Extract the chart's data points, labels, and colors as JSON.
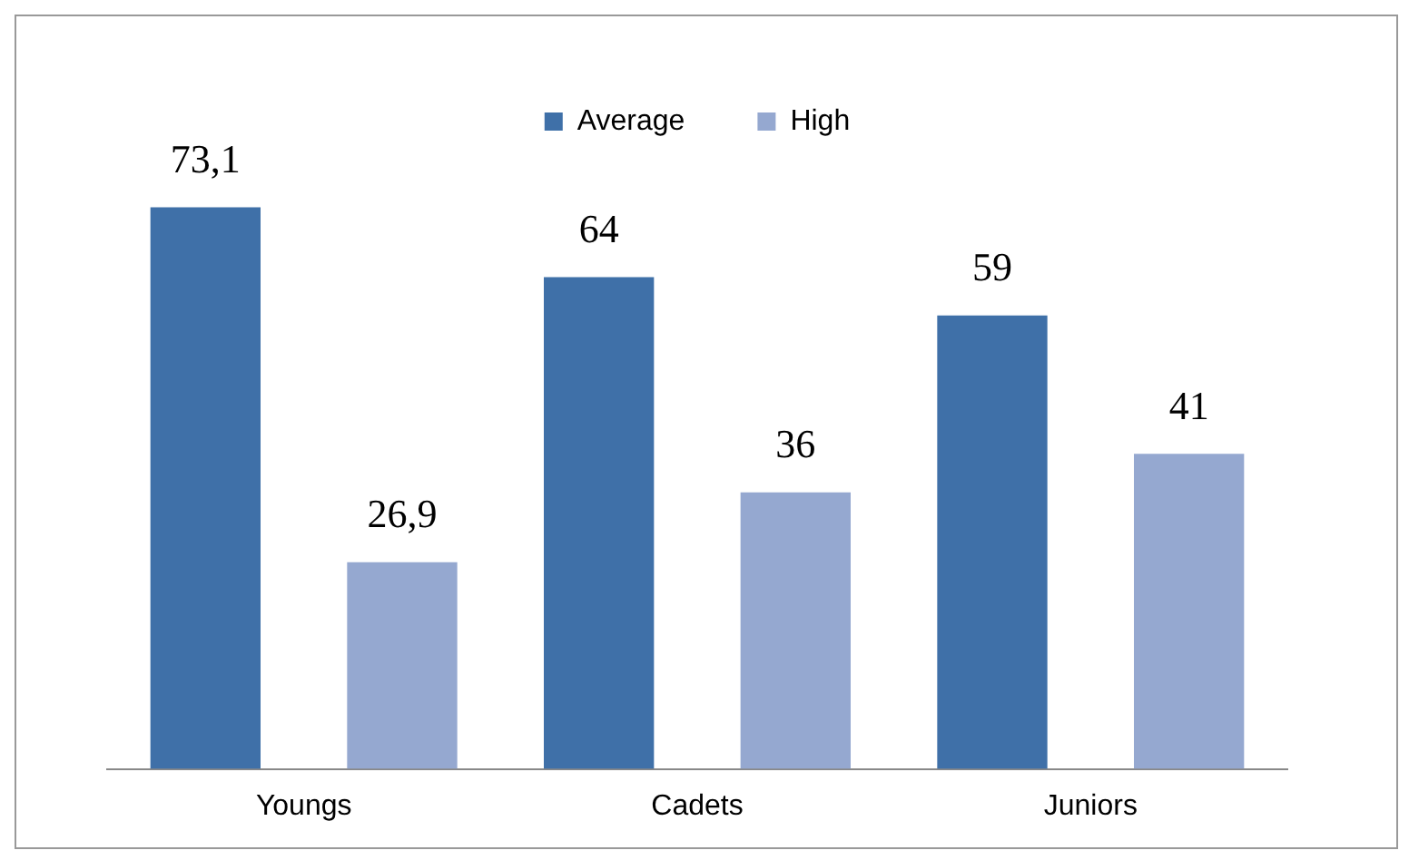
{
  "chart_data": {
    "type": "bar",
    "categories": [
      "Youngs",
      "Cadets",
      "Juniors"
    ],
    "series": [
      {
        "name": "Average",
        "color": "#3f70a8",
        "values": [
          73.1,
          64,
          59
        ],
        "value_labels": [
          "73,1",
          "64",
          "59"
        ]
      },
      {
        "name": "High",
        "color": "#95a8d0",
        "values": [
          26.9,
          36,
          41
        ],
        "value_labels": [
          "26,9",
          "36",
          "41"
        ]
      }
    ],
    "legend": "top",
    "grid": false
  }
}
